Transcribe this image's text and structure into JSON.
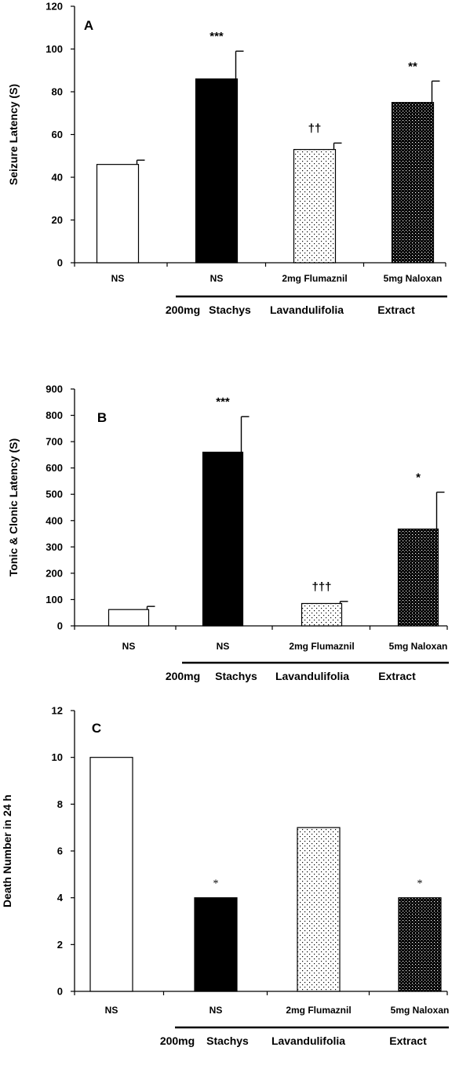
{
  "chart_data": [
    {
      "type": "bar",
      "panel_label": "A",
      "ylabel": "Seizure Latency (S)",
      "ylim": [
        0,
        120
      ],
      "yticks": [
        0,
        20,
        40,
        60,
        80,
        100,
        120
      ],
      "categories": [
        "NS",
        "NS",
        "2mg Flumaznil",
        "5mg Naloxan"
      ],
      "values": [
        46,
        86,
        53,
        75
      ],
      "errors": [
        2,
        13,
        3,
        10
      ],
      "fills": [
        "white",
        "black",
        "sparse-dots",
        "dense-dots"
      ],
      "significance": [
        "",
        "***",
        "††",
        "**"
      ],
      "group_label": [
        "200mg",
        "Stachys",
        "Lavandulifolia",
        "Extract"
      ]
    },
    {
      "type": "bar",
      "panel_label": "B",
      "ylabel": "Tonic & Clonic Latency (S)",
      "ylim": [
        0,
        900
      ],
      "yticks": [
        0,
        100,
        200,
        300,
        400,
        500,
        600,
        700,
        800,
        900
      ],
      "categories": [
        "NS",
        "NS",
        "2mg Flumaznil",
        "5mg Naloxan"
      ],
      "values": [
        62,
        660,
        85,
        368
      ],
      "errors": [
        12,
        135,
        8,
        140
      ],
      "fills": [
        "white",
        "black",
        "sparse-dots",
        "dense-dots"
      ],
      "significance": [
        "",
        "***",
        "†††",
        "*"
      ],
      "group_label": [
        "200mg",
        "Stachys",
        "Lavandulifolia",
        "Extract"
      ]
    },
    {
      "type": "bar",
      "panel_label": "C",
      "ylabel": "Death Number in 24 h",
      "ylim": [
        0,
        12
      ],
      "yticks": [
        0,
        2,
        4,
        6,
        8,
        10,
        12
      ],
      "categories": [
        "NS",
        "NS",
        "2mg Flumaznil",
        "5mg Naloxan"
      ],
      "values": [
        10,
        4,
        7,
        4
      ],
      "errors": [
        0,
        0,
        0,
        0
      ],
      "fills": [
        "white",
        "black",
        "sparse-dots",
        "dense-dots"
      ],
      "significance": [
        "",
        "*",
        "",
        "*"
      ],
      "group_label": [
        "200mg",
        "Stachys",
        "Lavandulifolia",
        "Extract"
      ]
    }
  ]
}
